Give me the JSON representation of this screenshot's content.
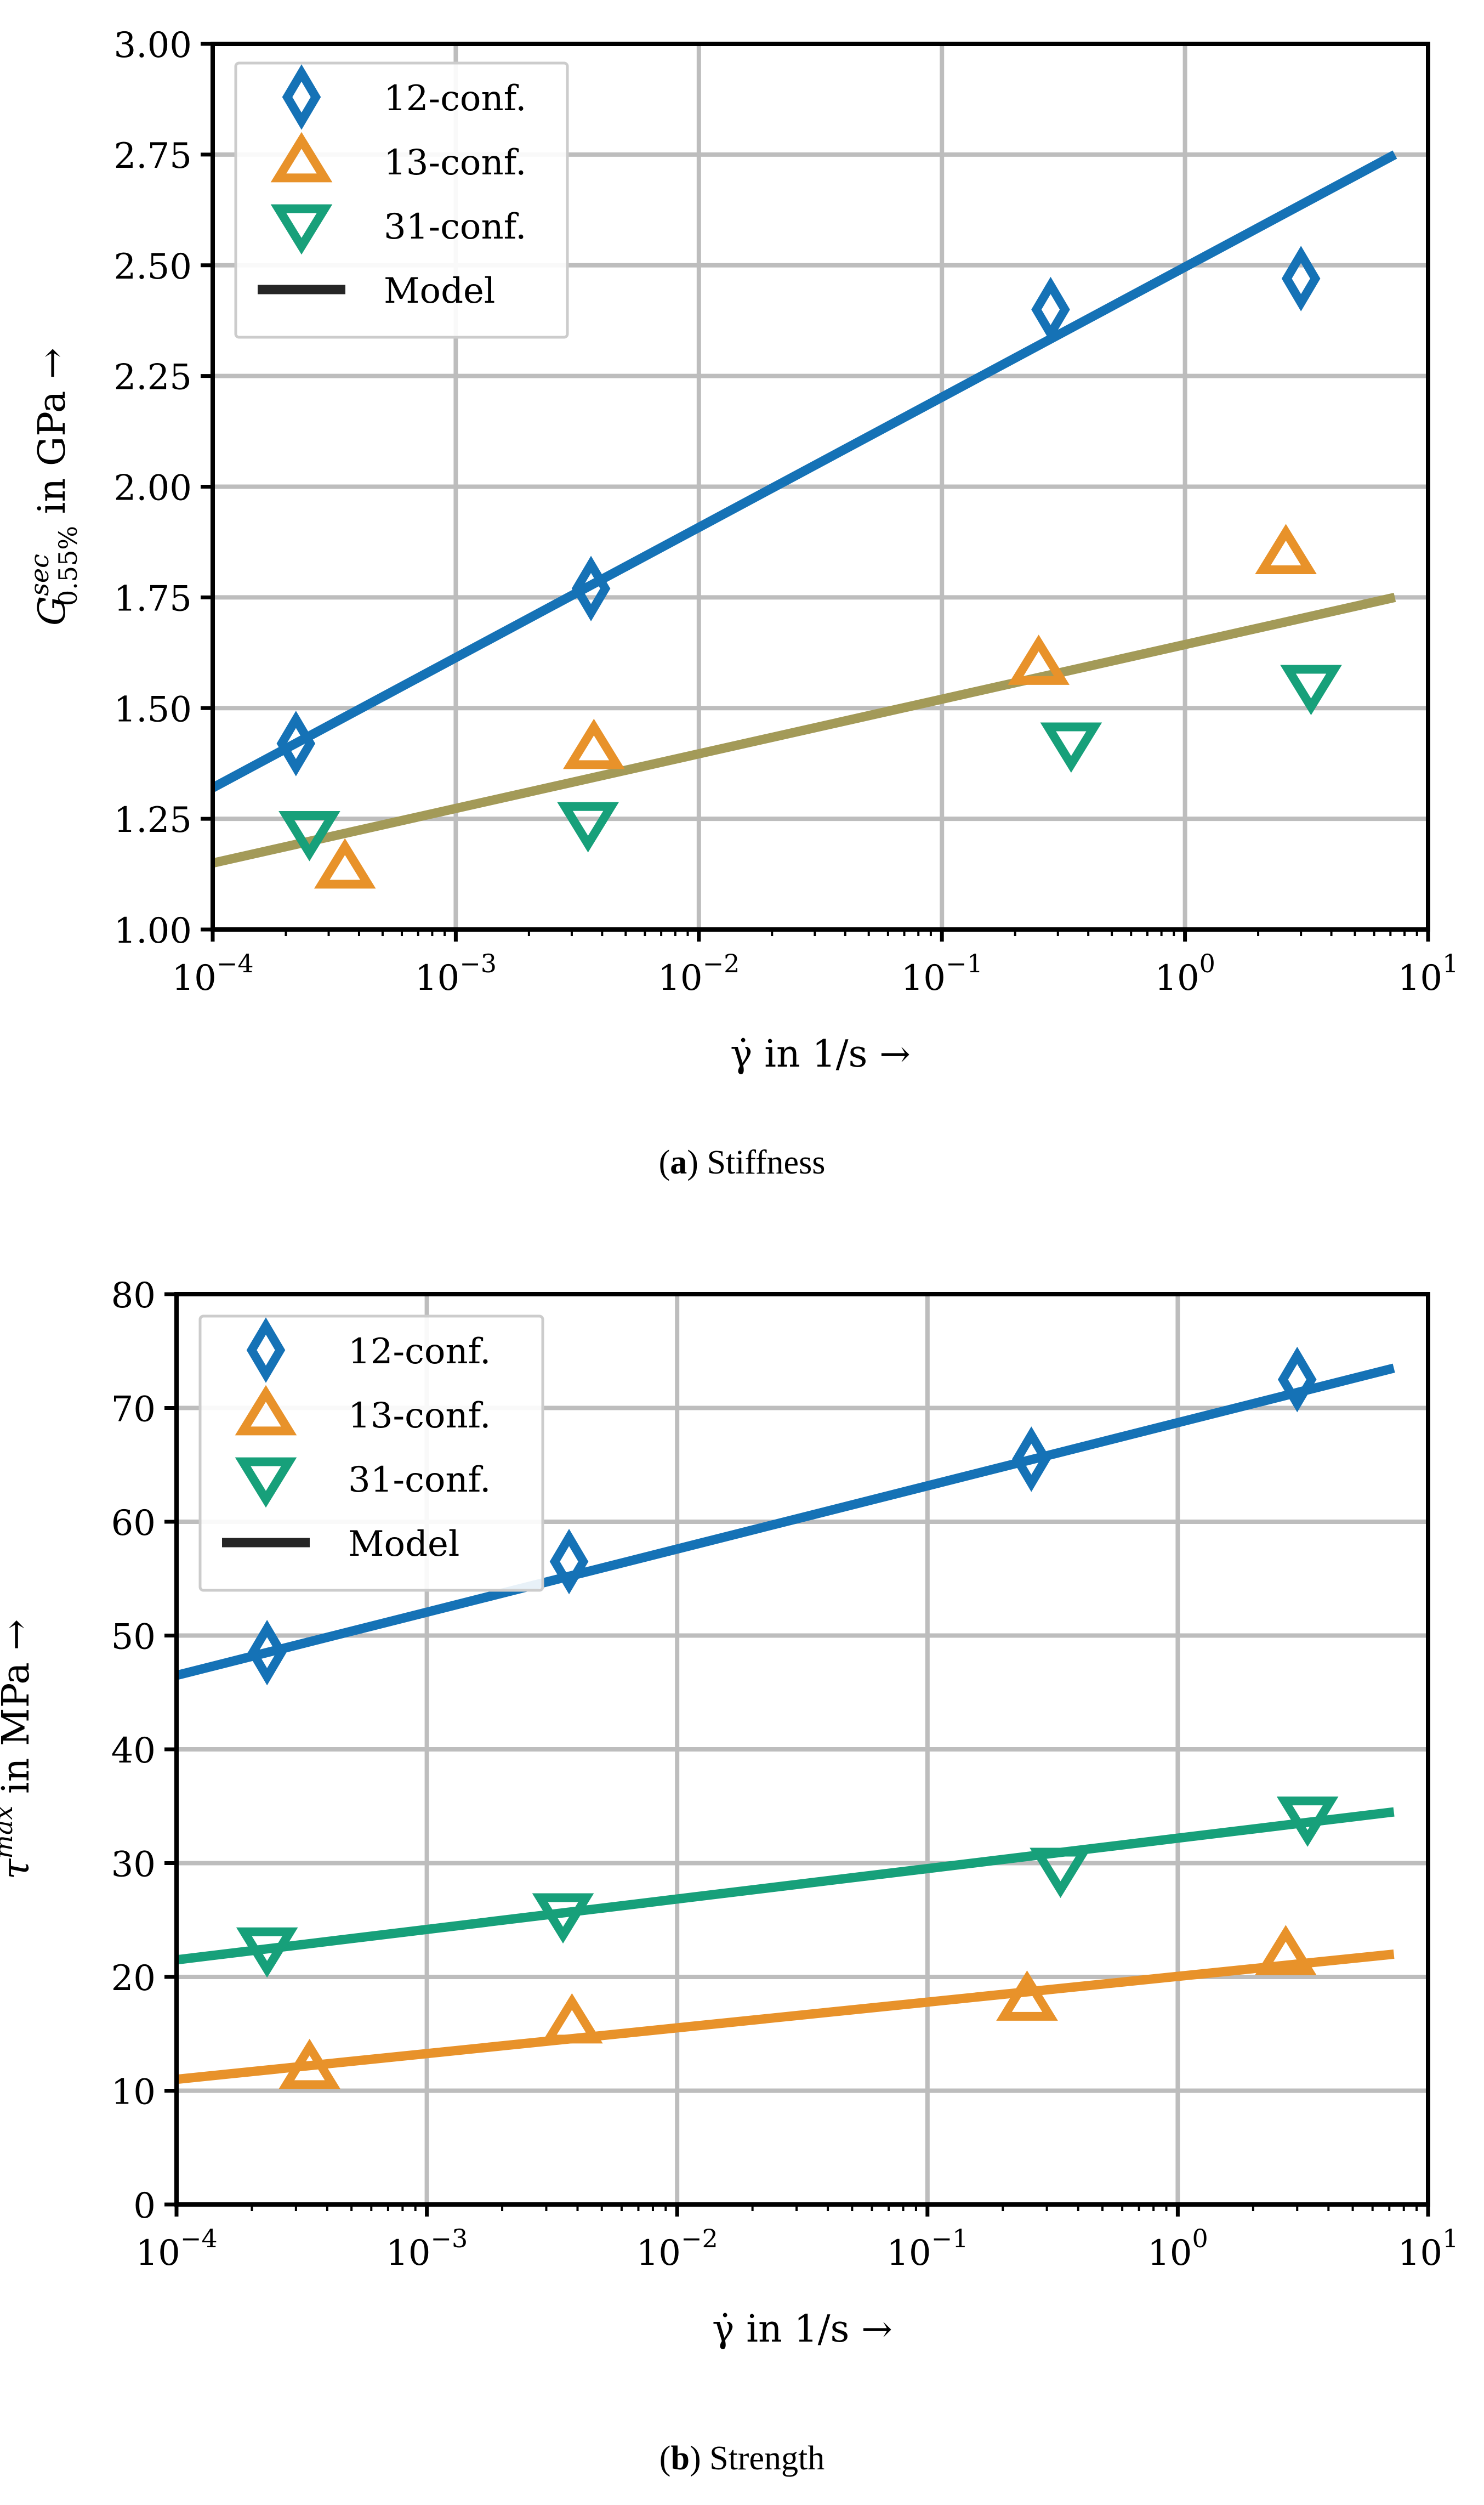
{
  "figure": {
    "captions": [
      {
        "label": "a",
        "text": "Stiffness"
      },
      {
        "label": "b",
        "text": "Strength"
      }
    ]
  },
  "colors": {
    "12-conf.": "#1572b6",
    "13-conf.": "#e8922a",
    "31-conf.": "#17a07a",
    "stiffness_model_13_31": "#a39a58",
    "grid": "#bdbdbd",
    "legend_model": "#262626"
  },
  "chart_data": [
    {
      "type": "scatter",
      "panel": "a",
      "title": "(a) Stiffness",
      "xlabel": "γ̇ in 1/s →",
      "ylabel": "G^sec_0.55% in GPa →",
      "ylabel_parts": {
        "base": "G",
        "sup": "sec",
        "sub": "0.55%",
        "rest": " in GPa →"
      },
      "xscale": "log",
      "xlim": [
        0.0001,
        10
      ],
      "ylim": [
        1.0,
        3.0
      ],
      "grid": true,
      "legend_position": "top-left",
      "xticks": [
        {
          "value": 0.0001,
          "base": "10",
          "exp": "−4"
        },
        {
          "value": 0.001,
          "base": "10",
          "exp": "−3"
        },
        {
          "value": 0.01,
          "base": "10",
          "exp": "−2"
        },
        {
          "value": 0.1,
          "base": "10",
          "exp": "−1"
        },
        {
          "value": 1,
          "base": "10",
          "exp": "0"
        },
        {
          "value": 10,
          "base": "10",
          "exp": "1"
        }
      ],
      "yticks": [
        {
          "value": 1.0,
          "label": "1.00"
        },
        {
          "value": 1.25,
          "label": "1.25"
        },
        {
          "value": 1.5,
          "label": "1.50"
        },
        {
          "value": 1.75,
          "label": "1.75"
        },
        {
          "value": 2.0,
          "label": "2.00"
        },
        {
          "value": 2.25,
          "label": "2.25"
        },
        {
          "value": 2.5,
          "label": "2.50"
        },
        {
          "value": 2.75,
          "label": "2.75"
        },
        {
          "value": 3.0,
          "label": "3.00"
        }
      ],
      "legend": [
        {
          "label": "12-conf.",
          "marker": "diamond",
          "color": "#1572b6"
        },
        {
          "label": "13-conf.",
          "marker": "triangle-up",
          "color": "#e8922a"
        },
        {
          "label": "31-conf.",
          "marker": "triangle-down",
          "color": "#17a07a"
        },
        {
          "label": "Model",
          "marker": "line",
          "color": "#262626"
        }
      ],
      "series": [
        {
          "name": "12-conf.",
          "marker": "diamond",
          "color": "#1572b6",
          "x": [
            0.00022,
            0.0036,
            0.28,
            3.0
          ],
          "y": [
            1.42,
            1.77,
            2.4,
            2.47
          ]
        },
        {
          "name": "13-conf.",
          "marker": "triangle-up",
          "color": "#e8922a",
          "x": [
            0.00035,
            0.0037,
            0.25,
            2.6
          ],
          "y": [
            1.14,
            1.41,
            1.6,
            1.85
          ]
        },
        {
          "name": "31-conf.",
          "marker": "triangle-down",
          "color": "#17a07a",
          "x": [
            0.00025,
            0.0035,
            0.34,
            3.3
          ],
          "y": [
            1.22,
            1.24,
            1.42,
            1.55
          ]
        }
      ],
      "models": [
        {
          "name": "Model 12-conf.",
          "color": "#1572b6",
          "x": [
            0.0001,
            7.3
          ],
          "y": [
            1.32,
            2.75
          ]
        },
        {
          "name": "Model 13/31-conf.",
          "color": "#a39a58",
          "x": [
            0.0001,
            7.3
          ],
          "y": [
            1.15,
            1.75
          ]
        }
      ]
    },
    {
      "type": "scatter",
      "panel": "b",
      "title": "(b) Strength",
      "xlabel": "γ̇ in 1/s →",
      "ylabel": "τ^max in MPa →",
      "ylabel_parts": {
        "base": "τ",
        "sup": "max",
        "sub": "",
        "rest": " in MPa →"
      },
      "xscale": "log",
      "xlim": [
        0.0001,
        10
      ],
      "ylim": [
        0,
        80
      ],
      "grid": true,
      "legend_position": "top-left",
      "xticks": [
        {
          "value": 0.0001,
          "base": "10",
          "exp": "−4"
        },
        {
          "value": 0.001,
          "base": "10",
          "exp": "−3"
        },
        {
          "value": 0.01,
          "base": "10",
          "exp": "−2"
        },
        {
          "value": 0.1,
          "base": "10",
          "exp": "−1"
        },
        {
          "value": 1,
          "base": "10",
          "exp": "0"
        },
        {
          "value": 10,
          "base": "10",
          "exp": "1"
        }
      ],
      "yticks": [
        {
          "value": 0,
          "label": "0"
        },
        {
          "value": 10,
          "label": "10"
        },
        {
          "value": 20,
          "label": "20"
        },
        {
          "value": 30,
          "label": "30"
        },
        {
          "value": 40,
          "label": "40"
        },
        {
          "value": 50,
          "label": "50"
        },
        {
          "value": 60,
          "label": "60"
        },
        {
          "value": 70,
          "label": "70"
        },
        {
          "value": 80,
          "label": "80"
        }
      ],
      "legend": [
        {
          "label": "12-conf.",
          "marker": "diamond",
          "color": "#1572b6"
        },
        {
          "label": "13-conf.",
          "marker": "triangle-up",
          "color": "#e8922a"
        },
        {
          "label": "31-conf.",
          "marker": "triangle-down",
          "color": "#17a07a"
        },
        {
          "label": "Model",
          "marker": "line",
          "color": "#262626"
        }
      ],
      "series": [
        {
          "name": "12-conf.",
          "marker": "diamond",
          "color": "#1572b6",
          "x": [
            0.00023,
            0.0037,
            0.26,
            3.0
          ],
          "y": [
            48.5,
            56.5,
            65.5,
            72.5
          ]
        },
        {
          "name": "13-conf.",
          "marker": "triangle-up",
          "color": "#e8922a",
          "x": [
            0.00034,
            0.0038,
            0.25,
            2.7
          ],
          "y": [
            12,
            16,
            18,
            22
          ]
        },
        {
          "name": "31-conf.",
          "marker": "triangle-down",
          "color": "#17a07a",
          "x": [
            0.00023,
            0.0035,
            0.34,
            3.3
          ],
          "y": [
            22.5,
            25.5,
            29.5,
            34
          ]
        }
      ],
      "models": [
        {
          "name": "Model 12-conf.",
          "color": "#1572b6",
          "x": [
            0.0001,
            7.3
          ],
          "y": [
            46.5,
            73.5
          ]
        },
        {
          "name": "Model 13-conf.",
          "color": "#e8922a",
          "x": [
            0.0001,
            7.3
          ],
          "y": [
            11,
            22
          ]
        },
        {
          "name": "Model 31-conf.",
          "color": "#17a07a",
          "x": [
            0.0001,
            7.3
          ],
          "y": [
            21.5,
            34.5
          ]
        }
      ]
    }
  ]
}
